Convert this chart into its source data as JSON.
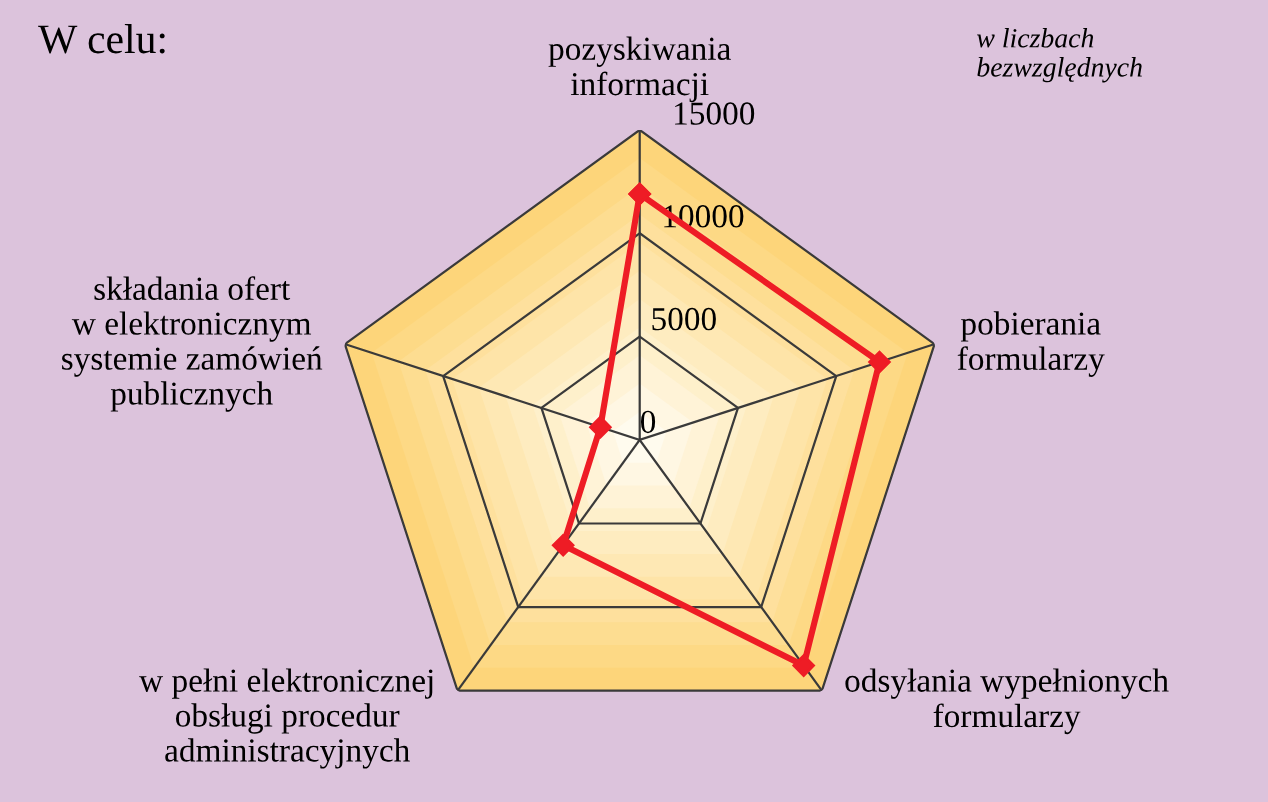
{
  "chart_data": {
    "type": "radar",
    "title": "W celu:",
    "annotations": [
      "w liczbach\nbezwzględnych"
    ],
    "categories": [
      "pozyskiwania\ninformacji",
      "pobierania\nformularzy",
      "odsyłania wypełnionych\nformularzy",
      "w pełni elektronicznej\nobsługi procedur\nadministracyjnych",
      "składania ofert\nw elektronicznym\nsystemie zamówień\npublicznych"
    ],
    "series": [
      {
        "color": "#ee1c25",
        "values": [
          11900,
          12200,
          13500,
          6300,
          2000
        ]
      }
    ],
    "ylim": [
      0,
      15000
    ],
    "yticks": [
      0,
      5000,
      10000,
      15000
    ],
    "grid": true,
    "marker": "diamond",
    "line_style": "solid",
    "legend": false
  }
}
